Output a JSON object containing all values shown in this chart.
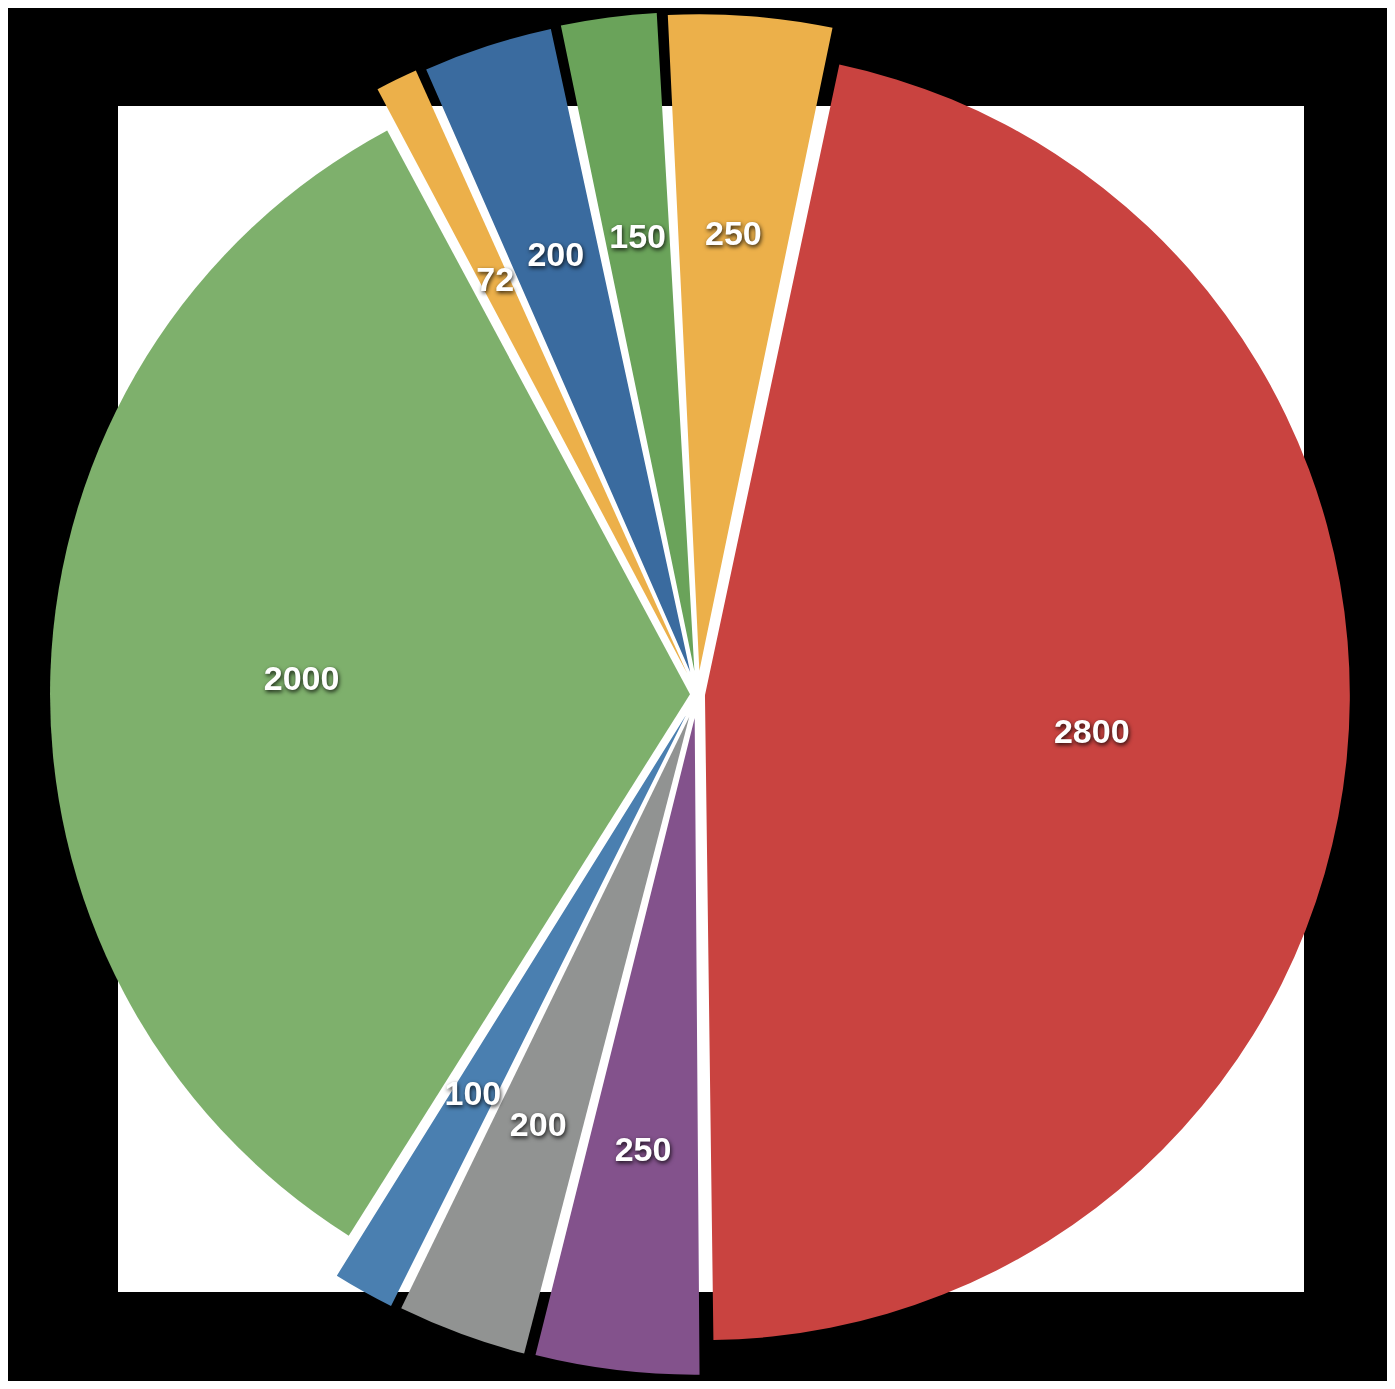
{
  "chart_data": {
    "type": "pie",
    "categories": [
      null,
      null,
      null,
      null,
      null,
      null,
      null,
      null,
      null
    ],
    "values": [
      250,
      2800,
      250,
      200,
      100,
      2000,
      72,
      200,
      150
    ],
    "colors": [
      "#ecb04a",
      "#c94340",
      "#83528c",
      "#919392",
      "#4a7fb0",
      "#7eb06c",
      "#ecb04a",
      "#3a6b9f",
      "#6aa35a"
    ],
    "data_labels": true,
    "legend": false
  }
}
